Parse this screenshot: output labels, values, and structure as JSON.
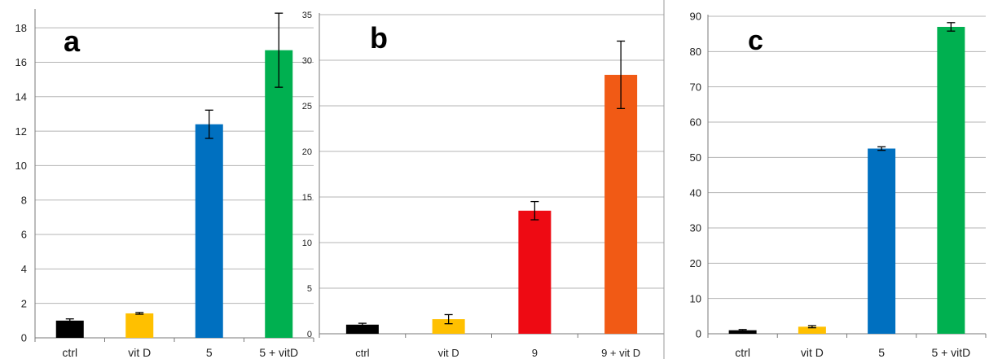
{
  "chart_data": [
    {
      "type": "bar",
      "title": "",
      "panel_label": "a",
      "xlabel": "",
      "ylabel": "",
      "categories": [
        "ctrl",
        "vit D",
        "5",
        "5 + vitD"
      ],
      "values": [
        1.0,
        1.42,
        12.4,
        16.7
      ],
      "errors": [
        0.1,
        0.05,
        0.82,
        2.15
      ],
      "colors": [
        "#000000",
        "#ffc000",
        "#0070c0",
        "#00b050"
      ],
      "ylim": [
        0,
        19
      ],
      "yticks": [
        0,
        2,
        4,
        6,
        8,
        10,
        12,
        14,
        16,
        18
      ],
      "grid": true,
      "legend": "none"
    },
    {
      "type": "bar",
      "title": "",
      "panel_label": "b",
      "xlabel": "",
      "ylabel": "",
      "categories": [
        "ctrl",
        "vit D",
        "9",
        "9 + vit D"
      ],
      "values": [
        1.0,
        1.6,
        13.5,
        28.4
      ],
      "errors": [
        0.15,
        0.5,
        1.0,
        3.7
      ],
      "colors": [
        "#000000",
        "#ffc000",
        "#ee0a13",
        "#f15a15"
      ],
      "ylim": [
        0,
        35
      ],
      "yticks": [
        0,
        5,
        10,
        15,
        20,
        25,
        30,
        35
      ],
      "grid": true,
      "legend": "none"
    },
    {
      "type": "bar",
      "title": "",
      "panel_label": "c",
      "xlabel": "",
      "ylabel": "",
      "categories": [
        "ctrl",
        "vit D",
        "5",
        "5 + vitD"
      ],
      "values": [
        1.0,
        2.0,
        52.5,
        87.0
      ],
      "errors": [
        0.2,
        0.3,
        0.5,
        1.2
      ],
      "colors": [
        "#000000",
        "#ffc000",
        "#0070c0",
        "#00b050"
      ],
      "ylim": [
        0,
        90
      ],
      "yticks": [
        0,
        10,
        20,
        30,
        40,
        50,
        60,
        70,
        80,
        90
      ],
      "grid": true,
      "legend": "none"
    }
  ]
}
